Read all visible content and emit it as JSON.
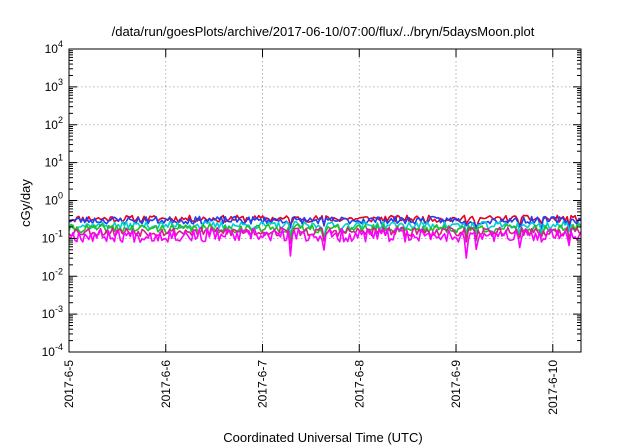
{
  "chart_data": {
    "type": "line",
    "title": "/data/run/goesPlots/archive/2017-06-10/07:00/flux/../bryn/5daysMoon.plot",
    "xlabel": "Coordinated Universal Time (UTC)",
    "ylabel": "cGy/day",
    "yscale": "log",
    "ylim": [
      0.0001,
      10000
    ],
    "xlim": [
      "2017-06-05T00:00",
      "2017-06-10T07:00"
    ],
    "grid": true,
    "x_ticks": [
      {
        "label": "2017-6-5",
        "date": "2017-06-05"
      },
      {
        "label": "2017-6-6",
        "date": "2017-06-06"
      },
      {
        "label": "2017-6-7",
        "date": "2017-06-07"
      },
      {
        "label": "2017-6-8",
        "date": "2017-06-08"
      },
      {
        "label": "2017-6-9",
        "date": "2017-06-09"
      },
      {
        "label": "2017-6-10",
        "date": "2017-06-10"
      }
    ],
    "y_ticks": [
      {
        "base": "10",
        "exp": "-4",
        "value": 0.0001
      },
      {
        "base": "10",
        "exp": "-3",
        "value": 0.001
      },
      {
        "base": "10",
        "exp": "-2",
        "value": 0.01
      },
      {
        "base": "10",
        "exp": "-1",
        "value": 0.1
      },
      {
        "base": "10",
        "exp": "0",
        "value": 1
      },
      {
        "base": "10",
        "exp": "1",
        "value": 10
      },
      {
        "base": "10",
        "exp": "2",
        "value": 100
      },
      {
        "base": "10",
        "exp": "3",
        "value": 1000
      },
      {
        "base": "10",
        "exp": "4",
        "value": 10000
      }
    ],
    "series": [
      {
        "color": "#e8001c",
        "base": 0.33,
        "jitter": 0.09,
        "dip": 0.18,
        "seed": 11
      },
      {
        "color": "#1f3ff0",
        "base": 0.3,
        "jitter": 0.1,
        "dip": 0.22,
        "seed": 23
      },
      {
        "color": "#00d0d0",
        "base": 0.22,
        "jitter": 0.1,
        "dip": 0.25,
        "seed": 37
      },
      {
        "color": "#20c020",
        "base": 0.18,
        "jitter": 0.11,
        "dip": 0.28,
        "seed": 41
      },
      {
        "color": "#d0208a",
        "base": 0.15,
        "jitter": 0.12,
        "dip": 0.32,
        "seed": 53
      },
      {
        "color": "#ff00ff",
        "base": 0.12,
        "jitter": 0.18,
        "dip": 0.55,
        "seed": 67
      }
    ],
    "n_points": 260
  }
}
